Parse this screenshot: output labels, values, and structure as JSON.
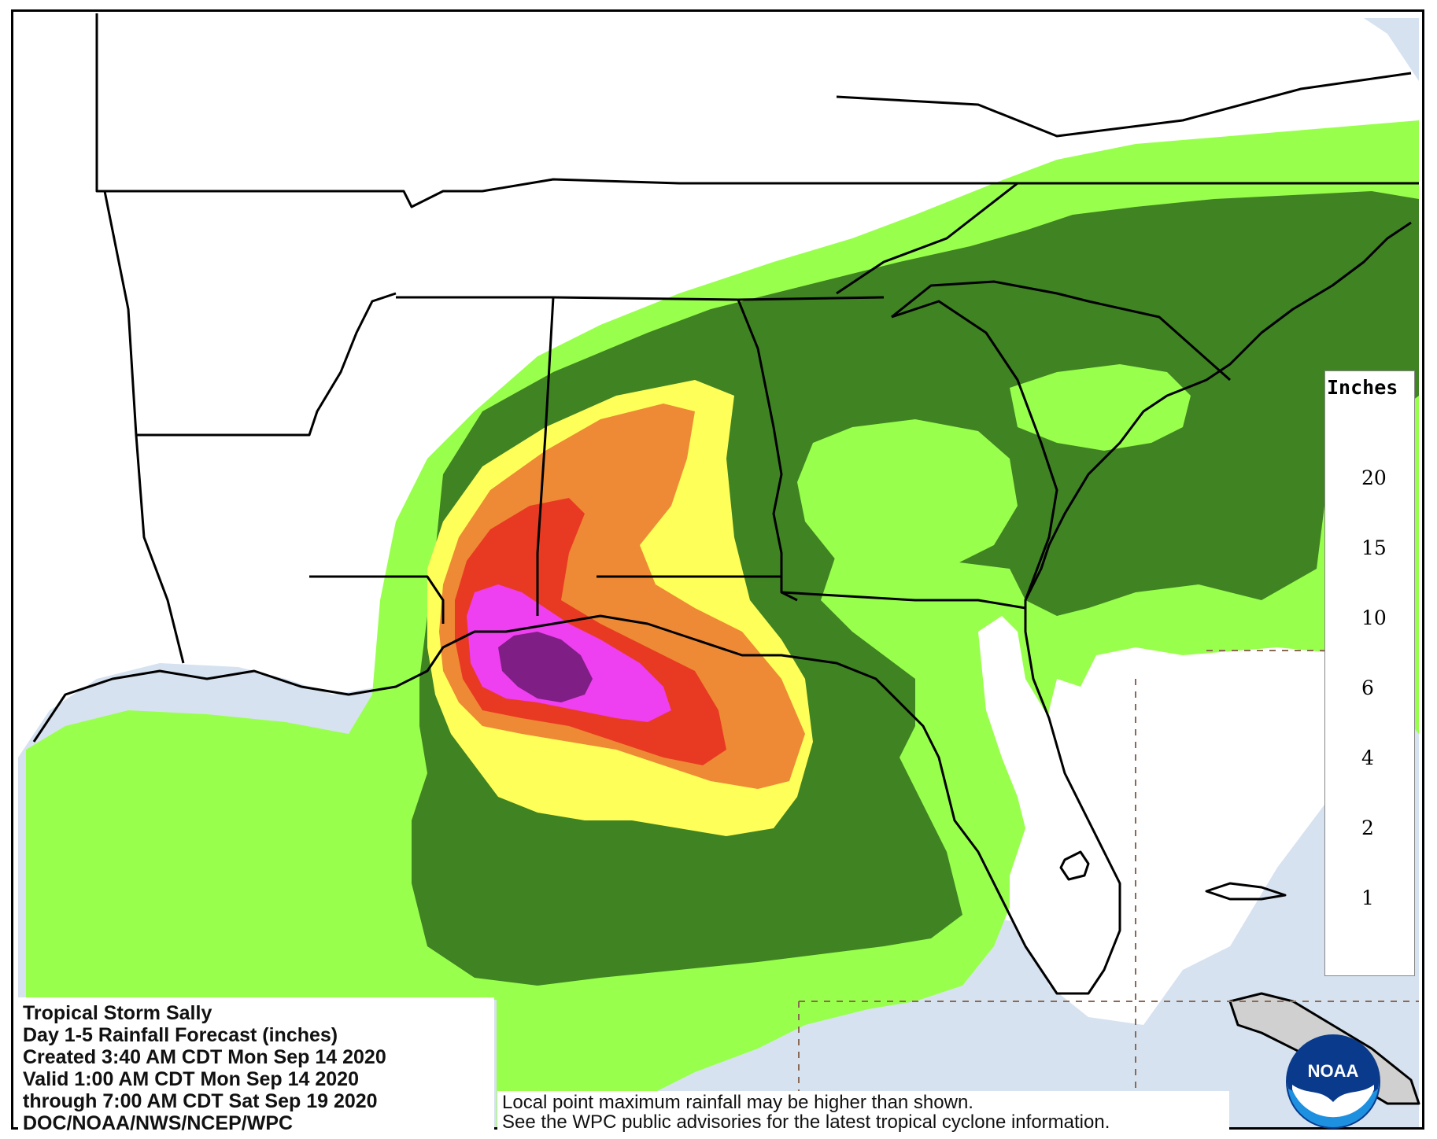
{
  "map": {
    "title": "Tropical Storm Sally",
    "info_lines": [
      "Tropical Storm Sally",
      "Day 1-5 Rainfall Forecast (inches)",
      "Created 3:40 AM CDT Mon Sep 14 2020",
      "Valid 1:00 AM CDT Mon Sep 14 2020",
      "through 7:00 AM CDT Sat Sep 19 2020",
      "DOC/NOAA/NWS/NCEP/WPC"
    ],
    "disclaimer_lines": [
      "Local point maximum rainfall may be higher than shown.",
      "See the WPC public advisories for the latest tropical cyclone information."
    ],
    "logo_text": "NOAA",
    "colors": {
      "water": "#d6e2f0",
      "land_none": "#ffffff",
      "level_1": "#99ff4d",
      "level_2": "#3f8323",
      "level_4": "#ffff59",
      "level_6": "#ee8a35",
      "level_10": "#e83a22",
      "level_15": "#ee3ff0",
      "level_20": "#7f1e85",
      "border": "#000000"
    }
  },
  "legend": {
    "title": "Inches",
    "ticks": [
      "1",
      "2",
      "4",
      "6",
      "10",
      "15",
      "20"
    ],
    "bins": [
      {
        "range": "0-1",
        "color": "#ffffff"
      },
      {
        "range": "1-2",
        "color": "#99ff4d"
      },
      {
        "range": "2-4",
        "color": "#3f8323"
      },
      {
        "range": "4-6",
        "color": "#ffff59"
      },
      {
        "range": "6-10",
        "color": "#ee8a35"
      },
      {
        "range": "10-15",
        "color": "#e83a22"
      },
      {
        "range": "15-20",
        "color": "#ee3ff0"
      },
      {
        "range": "20+",
        "color": "#7f1e85"
      }
    ]
  }
}
